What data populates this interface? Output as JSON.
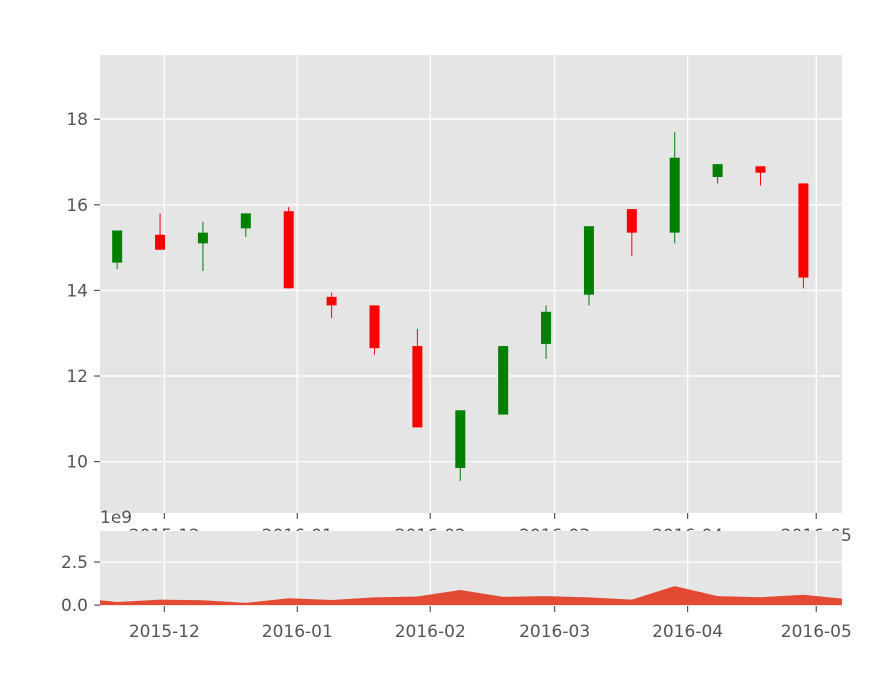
{
  "chart_data": [
    {
      "type": "candlestick",
      "title": "",
      "xlabel": "",
      "ylabel": "",
      "ylim": [
        8.8,
        19.5
      ],
      "grid": true,
      "y_ticks": [
        10,
        12,
        14,
        16,
        18
      ],
      "x_ticks": [
        {
          "date": "2015-12-01",
          "label": "2015-12"
        },
        {
          "date": "2016-01-01",
          "label": "2016-01"
        },
        {
          "date": "2016-02-01",
          "label": "2016-02"
        },
        {
          "date": "2016-03-01",
          "label": "2016-03"
        },
        {
          "date": "2016-04-01",
          "label": "2016-04"
        },
        {
          "date": "2016-05-01",
          "label": "2016-05"
        }
      ],
      "xlim": [
        "2015-11-16",
        "2016-05-07"
      ],
      "up_color": "#008000",
      "down_color": "#ff0000",
      "candles": [
        {
          "date": "2015-11-20",
          "open": 14.65,
          "high": 15.4,
          "low": 14.5,
          "close": 15.4
        },
        {
          "date": "2015-11-30",
          "open": 15.3,
          "high": 15.8,
          "low": 14.95,
          "close": 14.95
        },
        {
          "date": "2015-12-10",
          "open": 15.1,
          "high": 15.6,
          "low": 14.45,
          "close": 15.35
        },
        {
          "date": "2015-12-20",
          "open": 15.45,
          "high": 15.8,
          "low": 15.25,
          "close": 15.8
        },
        {
          "date": "2015-12-30",
          "open": 15.85,
          "high": 15.95,
          "low": 14.05,
          "close": 14.05
        },
        {
          "date": "2016-01-09",
          "open": 13.85,
          "high": 13.95,
          "low": 13.35,
          "close": 13.65
        },
        {
          "date": "2016-01-19",
          "open": 13.65,
          "high": 13.65,
          "low": 12.5,
          "close": 12.65
        },
        {
          "date": "2016-01-29",
          "open": 12.7,
          "high": 13.1,
          "low": 10.8,
          "close": 10.8
        },
        {
          "date": "2016-02-08",
          "open": 9.85,
          "high": 11.2,
          "low": 9.55,
          "close": 11.2
        },
        {
          "date": "2016-02-18",
          "open": 11.1,
          "high": 12.7,
          "low": 11.1,
          "close": 12.7
        },
        {
          "date": "2016-02-28",
          "open": 12.75,
          "high": 13.65,
          "low": 12.4,
          "close": 13.5
        },
        {
          "date": "2016-03-09",
          "open": 13.9,
          "high": 15.5,
          "low": 13.65,
          "close": 15.5
        },
        {
          "date": "2016-03-19",
          "open": 15.9,
          "high": 15.9,
          "low": 14.8,
          "close": 15.35
        },
        {
          "date": "2016-03-29",
          "open": 15.35,
          "high": 17.7,
          "low": 15.1,
          "close": 17.1
        },
        {
          "date": "2016-04-08",
          "open": 16.65,
          "high": 16.95,
          "low": 16.5,
          "close": 16.95
        },
        {
          "date": "2016-04-18",
          "open": 16.9,
          "high": 16.9,
          "low": 16.45,
          "close": 16.75
        },
        {
          "date": "2016-04-28",
          "open": 16.5,
          "high": 16.5,
          "low": 14.05,
          "close": 14.3
        }
      ]
    },
    {
      "type": "area",
      "title": "",
      "xlabel": "",
      "ylabel": "",
      "scale_label": "1e9",
      "ylim": [
        -0.05,
        4.3
      ],
      "grid": true,
      "color": "#e24a33",
      "y_ticks": [
        {
          "value": 0.0,
          "label": "0.0"
        },
        {
          "value": 2.5,
          "label": "2.5"
        }
      ],
      "x_ticks": [
        {
          "date": "2015-12-01",
          "label": "2015-12"
        },
        {
          "date": "2016-01-01",
          "label": "2016-01"
        },
        {
          "date": "2016-02-01",
          "label": "2016-02"
        },
        {
          "date": "2016-03-01",
          "label": "2016-03"
        },
        {
          "date": "2016-04-01",
          "label": "2016-04"
        },
        {
          "date": "2016-05-01",
          "label": "2016-05"
        }
      ],
      "xlim": [
        "2015-11-16",
        "2016-05-07"
      ],
      "points": [
        {
          "date": "2015-11-16",
          "value": 0.28
        },
        {
          "date": "2015-11-20",
          "value": 0.18
        },
        {
          "date": "2015-11-30",
          "value": 0.32
        },
        {
          "date": "2015-12-10",
          "value": 0.28
        },
        {
          "date": "2015-12-20",
          "value": 0.13
        },
        {
          "date": "2015-12-30",
          "value": 0.4
        },
        {
          "date": "2016-01-09",
          "value": 0.3
        },
        {
          "date": "2016-01-19",
          "value": 0.45
        },
        {
          "date": "2016-01-29",
          "value": 0.5
        },
        {
          "date": "2016-02-08",
          "value": 0.88
        },
        {
          "date": "2016-02-18",
          "value": 0.48
        },
        {
          "date": "2016-02-28",
          "value": 0.52
        },
        {
          "date": "2016-03-09",
          "value": 0.45
        },
        {
          "date": "2016-03-19",
          "value": 0.32
        },
        {
          "date": "2016-03-29",
          "value": 1.1
        },
        {
          "date": "2016-04-08",
          "value": 0.52
        },
        {
          "date": "2016-04-18",
          "value": 0.46
        },
        {
          "date": "2016-04-28",
          "value": 0.6
        },
        {
          "date": "2016-05-07",
          "value": 0.38
        }
      ]
    }
  ]
}
